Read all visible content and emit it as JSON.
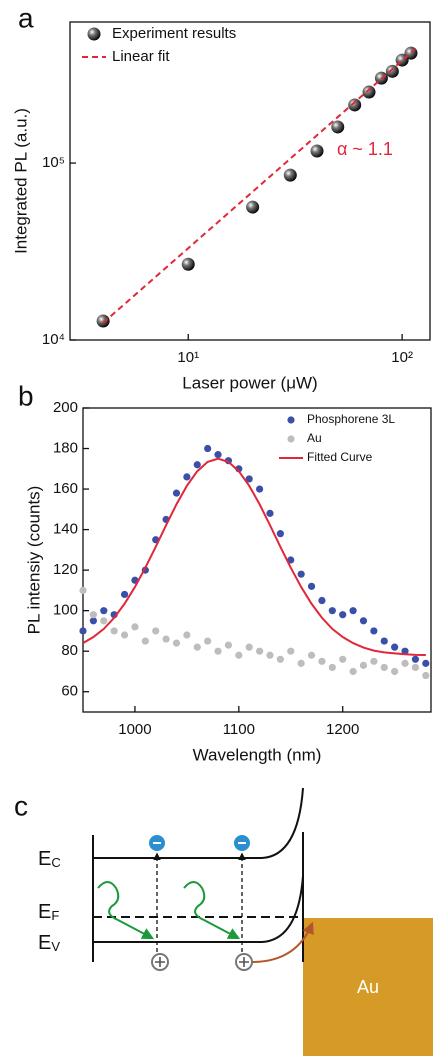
{
  "chart_data": [
    {
      "type": "scatter",
      "panel_label": "a",
      "xlabel": "Laser power (μW)",
      "ylabel": "Integrated PL (a.u.)",
      "xscale": "log",
      "yscale": "log",
      "xlim": [
        2.8,
        135
      ],
      "ylim": [
        10000,
        627000
      ],
      "xticks": [
        {
          "value": 10,
          "label": "10¹"
        },
        {
          "value": 100,
          "label": "10²"
        }
      ],
      "yticks": [
        {
          "value": 10000,
          "label": "10⁴"
        },
        {
          "value": 100000,
          "label": "10⁵"
        }
      ],
      "legend": "upper left",
      "annotations": [
        {
          "text": "α ~ 1.1",
          "x": 67,
          "y": 118000,
          "color": "#e0283a"
        }
      ],
      "series": [
        {
          "name": "Experiment results",
          "mode": "markers",
          "color": "#000000",
          "x": [
            4,
            10,
            20,
            30,
            40,
            50,
            60,
            70,
            80,
            90,
            100,
            110
          ],
          "values": [
            12800,
            26800,
            56400,
            85500,
            117000,
            160000,
            213000,
            252000,
            302000,
            330000,
            382000,
            418000
          ]
        },
        {
          "name": "Linear fit",
          "mode": "line",
          "dash": true,
          "color": "#e0283a",
          "x": [
            4,
            115
          ],
          "values": [
            12500,
            440000
          ]
        }
      ]
    },
    {
      "type": "scatter",
      "panel_label": "b",
      "xlabel": "Wavelength (nm)",
      "ylabel": "PL intensiy (counts)",
      "xlim": [
        950,
        1285
      ],
      "ylim": [
        50,
        200
      ],
      "xticks": [
        1000,
        1100,
        1200
      ],
      "yticks": [
        60,
        80,
        100,
        120,
        140,
        160,
        180,
        200
      ],
      "legend": "upper right",
      "x": [
        950,
        960,
        970,
        980,
        990,
        1000,
        1010,
        1020,
        1030,
        1040,
        1050,
        1060,
        1070,
        1080,
        1090,
        1100,
        1110,
        1120,
        1130,
        1140,
        1150,
        1160,
        1170,
        1180,
        1190,
        1200,
        1210,
        1220,
        1230,
        1240,
        1250,
        1260,
        1270,
        1280
      ],
      "series": [
        {
          "name": "Phosphorene 3L",
          "mode": "markers",
          "color": "#3a4fa8",
          "values": [
            90,
            95,
            100,
            98,
            108,
            115,
            120,
            135,
            145,
            158,
            166,
            172,
            180,
            177,
            174,
            170,
            165,
            160,
            148,
            138,
            125,
            118,
            112,
            105,
            100,
            98,
            100,
            95,
            90,
            85,
            82,
            80,
            76,
            74
          ]
        },
        {
          "name": "Au",
          "mode": "markers",
          "color": "#bdbdbd",
          "values": [
            110,
            98,
            95,
            90,
            88,
            92,
            85,
            90,
            86,
            84,
            88,
            82,
            85,
            80,
            83,
            78,
            82,
            80,
            78,
            76,
            80,
            74,
            78,
            75,
            72,
            76,
            70,
            73,
            75,
            72,
            70,
            74,
            72,
            68
          ]
        },
        {
          "name": "Fitted Curve",
          "mode": "line",
          "color": "#e0283a",
          "values": [
            84,
            87,
            91,
            96.5,
            103.4,
            111.7,
            121.2,
            131.5,
            142.2,
            152.5,
            161.6,
            168.8,
            173.4,
            175,
            173.4,
            168.8,
            161.6,
            152.5,
            142.2,
            131.5,
            121.2,
            111.7,
            103.4,
            96.5,
            91,
            87,
            84,
            81.8,
            80.3,
            79.4,
            78.9,
            78.5,
            78.2,
            78.1
          ]
        }
      ]
    }
  ],
  "diagram": {
    "panel_label": "c",
    "levels": [
      {
        "symbol": "E",
        "subscript": "C"
      },
      {
        "symbol": "E",
        "subscript": "F"
      },
      {
        "symbol": "E",
        "subscript": "V"
      }
    ],
    "metal": "Au"
  }
}
